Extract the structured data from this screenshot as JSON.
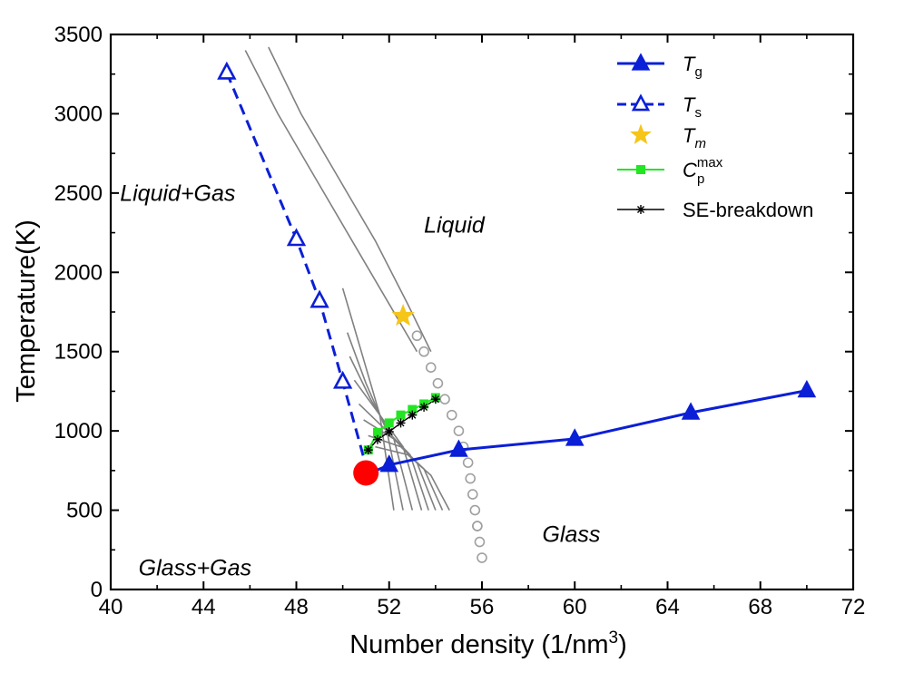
{
  "chart_data": {
    "type": "line",
    "title": "",
    "xlabel": "Number density (1/nm",
    "xlabel_sup": "3",
    "xlabel_tail": ")",
    "ylabel": "Temperature(K)",
    "xlim": [
      40,
      72
    ],
    "ylim": [
      0,
      3500
    ],
    "x_ticks": [
      40,
      44,
      48,
      52,
      56,
      60,
      64,
      68,
      72
    ],
    "y_ticks": [
      0,
      500,
      1000,
      1500,
      2000,
      2500,
      3000,
      3500
    ],
    "grid": false,
    "legend_position": "top-right",
    "series": [
      {
        "name": "Tg",
        "legend_main": "T",
        "legend_sub": "g",
        "style": "solid-filled-triangle",
        "color": "#0b1fd6",
        "x": [
          51.1,
          52.0,
          55.0,
          60.0,
          65.0,
          70.0
        ],
        "y": [
          730,
          785,
          880,
          950,
          1115,
          1255
        ]
      },
      {
        "name": "Ts",
        "legend_main": "T",
        "legend_sub": "s",
        "style": "dashed-open-triangle",
        "color": "#0b1fd6",
        "x": [
          45.0,
          48.0,
          49.0,
          50.0,
          51.1
        ],
        "y": [
          3260,
          2210,
          1820,
          1310,
          730
        ]
      },
      {
        "name": "Tm",
        "legend_main": "T",
        "legend_sub": "m",
        "style": "star",
        "color": "#f5c518",
        "x": [
          52.6
        ],
        "y": [
          1725
        ]
      },
      {
        "name": "Cp max",
        "legend_main": "C",
        "legend_sub": "p",
        "legend_sup": "max",
        "style": "line-square",
        "color": "#22e622",
        "x": [
          51.1,
          51.5,
          52.0,
          52.5,
          53.0,
          53.5,
          54.0
        ],
        "y": [
          880,
          990,
          1050,
          1100,
          1135,
          1170,
          1210
        ]
      },
      {
        "name": "SE-breakdown",
        "legend_main": "SE-breakdown",
        "style": "line-asterisk",
        "color": "#000000",
        "x": [
          51.1,
          51.5,
          52.0,
          52.5,
          53.0,
          53.5,
          54.0
        ],
        "y": [
          880,
          945,
          995,
          1050,
          1100,
          1150,
          1200
        ]
      }
    ],
    "special_point": {
      "name": "critical point",
      "color": "#ff0000",
      "x": 51.0,
      "y": 735
    },
    "open_circles": {
      "color": "#a0a0a0",
      "x": [
        53.2,
        53.5,
        53.8,
        54.1,
        54.4,
        54.7,
        55.0,
        55.2,
        55.4,
        55.5,
        55.6,
        55.7,
        55.8
      ],
      "y": [
        1600,
        1500,
        1400,
        1300,
        1200,
        1100,
        1000,
        900,
        800,
        700,
        600,
        500,
        400
      ]
    },
    "open_circles_low": {
      "x": [
        55.8,
        55.9,
        56.0
      ],
      "y": [
        400,
        300,
        200
      ]
    },
    "isochore_lines": {
      "color": "#808080",
      "lines": [
        {
          "x": [
            45.8,
            47.2,
            48.8,
            50.4,
            52.0,
            53.2
          ],
          "y": [
            3400,
            3000,
            2600,
            2200,
            1800,
            1500
          ]
        },
        {
          "x": [
            46.8,
            48.2,
            49.8,
            51.4,
            52.8,
            53.8
          ],
          "y": [
            3420,
            3000,
            2600,
            2200,
            1800,
            1500
          ]
        },
        {
          "x": [
            50.0,
            50.8,
            51.6,
            52.2
          ],
          "y": [
            1900,
            1500,
            1100,
            500
          ]
        },
        {
          "x": [
            50.2,
            51.0,
            51.9,
            52.6
          ],
          "y": [
            1620,
            1300,
            1000,
            500
          ]
        },
        {
          "x": [
            50.3,
            51.2,
            52.2,
            53.0
          ],
          "y": [
            1470,
            1200,
            950,
            500
          ]
        },
        {
          "x": [
            50.5,
            51.6,
            52.6,
            53.4
          ],
          "y": [
            1320,
            1100,
            900,
            500
          ]
        },
        {
          "x": [
            50.7,
            51.9,
            52.9,
            53.7
          ],
          "y": [
            1170,
            1000,
            850,
            500
          ]
        },
        {
          "x": [
            50.9,
            52.2,
            53.2,
            54.0
          ],
          "y": [
            1070,
            950,
            800,
            500
          ]
        },
        {
          "x": [
            51.1,
            52.5,
            53.5,
            54.3
          ],
          "y": [
            970,
            900,
            760,
            500
          ]
        },
        {
          "x": [
            51.4,
            52.8,
            53.8,
            54.6
          ],
          "y": [
            900,
            850,
            720,
            500
          ]
        }
      ]
    },
    "annotations": [
      {
        "text": "Liquid+Gas",
        "x": 40.4,
        "y": 2450
      },
      {
        "text": "Liquid",
        "x": 53.5,
        "y": 2250
      },
      {
        "text": "Glass",
        "x": 58.6,
        "y": 300
      },
      {
        "text": "Glass+Gas",
        "x": 41.2,
        "y": 90
      }
    ]
  }
}
